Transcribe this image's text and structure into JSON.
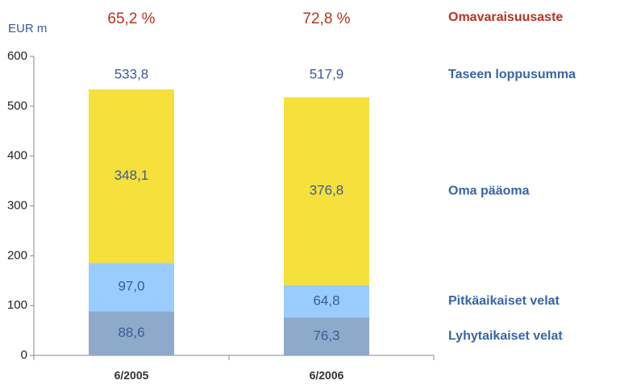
{
  "chart_data": {
    "type": "stacked-bar",
    "y_axis_label": "EUR m",
    "categories": [
      "6/2005",
      "6/2006"
    ],
    "series": [
      {
        "name": "Lyhytaikaiset velat",
        "color": "#8eaacb",
        "values": [
          88.6,
          76.3
        ],
        "value_labels": [
          "88,6",
          "76,3"
        ]
      },
      {
        "name": "Pitkäaikaiset velat",
        "color": "#99ccff",
        "values": [
          97.0,
          64.8
        ],
        "value_labels": [
          "97,0",
          "64,8"
        ]
      },
      {
        "name": "Oma pääoma",
        "color": "#f5e03c",
        "values": [
          348.1,
          376.8
        ],
        "value_labels": [
          "348,1",
          "376,8"
        ]
      }
    ],
    "totals": {
      "name": "Taseen loppusumma",
      "values": [
        533.8,
        517.9
      ],
      "value_labels": [
        "533,8",
        "517,9"
      ]
    },
    "ratio": {
      "name": "Omavaraisuusaste",
      "values": [
        65.2,
        72.8
      ],
      "value_labels": [
        "65,2 %",
        "72,8 %"
      ]
    },
    "ylim": [
      0,
      600
    ],
    "yticks": [
      0,
      100,
      200,
      300,
      400,
      500,
      600
    ]
  }
}
